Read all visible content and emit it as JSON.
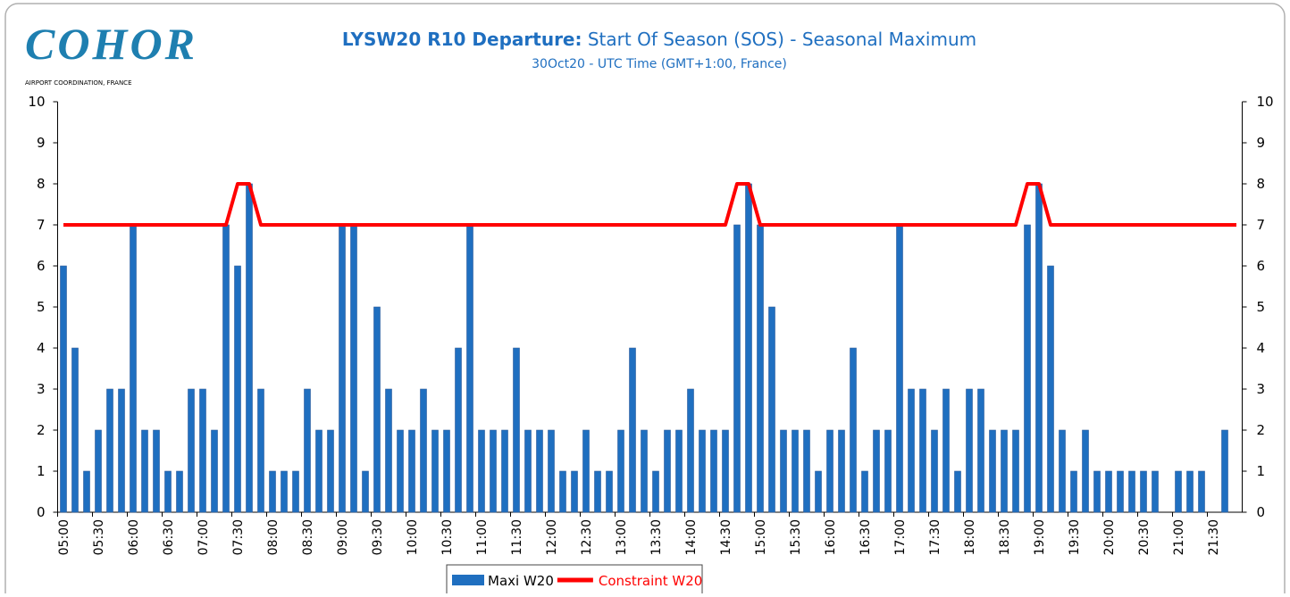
{
  "logo": {
    "name": "COHOR",
    "tagline": "AIRPORT COORDINATION, FRANCE"
  },
  "chart_data": {
    "type": "bar_line",
    "title": {
      "bold": "LYSW20 R10 Departure:",
      "rest": "Start Of Season (SOS) - Seasonal Maximum"
    },
    "subtitle": "30Oct20 - UTC Time (GMT+1:00, France)",
    "categories": [
      "05:00",
      null,
      null,
      "05:30",
      null,
      null,
      "06:00",
      null,
      null,
      "06:30",
      null,
      null,
      "07:00",
      null,
      null,
      "07:30",
      null,
      null,
      "08:00",
      null,
      null,
      "08:30",
      null,
      null,
      "09:00",
      null,
      null,
      "09:30",
      null,
      null,
      "10:00",
      null,
      null,
      "10:30",
      null,
      null,
      "11:00",
      null,
      null,
      "11:30",
      null,
      null,
      "12:00",
      null,
      null,
      "12:30",
      null,
      null,
      "13:00",
      null,
      null,
      "13:30",
      null,
      null,
      "14:00",
      null,
      null,
      "14:30",
      null,
      null,
      "15:00",
      null,
      null,
      "15:30",
      null,
      null,
      "16:00",
      null,
      null,
      "16:30",
      null,
      null,
      "17:00",
      null,
      null,
      "17:30",
      null,
      null,
      "18:00",
      null,
      null,
      "18:30",
      null,
      null,
      "19:00",
      null,
      null,
      "19:30",
      null,
      null,
      "20:00",
      null,
      null,
      "20:30",
      null,
      null,
      "21:00",
      null,
      null,
      "21:30",
      null,
      null
    ],
    "series": [
      {
        "name": "Maxi W20",
        "color": "#1f6fc0",
        "kind": "bar",
        "values": [
          6,
          4,
          1,
          2,
          3,
          3,
          7,
          2,
          2,
          1,
          1,
          3,
          3,
          2,
          7,
          6,
          8,
          3,
          1,
          1,
          1,
          3,
          2,
          2,
          7,
          7,
          1,
          5,
          3,
          2,
          2,
          3,
          2,
          2,
          4,
          7,
          2,
          2,
          2,
          4,
          2,
          2,
          2,
          1,
          1,
          2,
          1,
          1,
          2,
          4,
          2,
          1,
          2,
          2,
          3,
          2,
          2,
          2,
          7,
          8,
          7,
          5,
          2,
          2,
          2,
          1,
          2,
          2,
          4,
          1,
          2,
          2,
          7,
          3,
          3,
          2,
          3,
          1,
          3,
          3,
          2,
          2,
          2,
          7,
          8,
          6,
          2,
          1,
          2,
          1,
          1,
          1,
          1,
          1,
          1,
          0,
          1,
          1,
          1,
          0,
          2,
          0
        ]
      },
      {
        "name": "Constraint W20",
        "color": "#ff0000",
        "kind": "line",
        "values": [
          7,
          7,
          7,
          7,
          7,
          7,
          7,
          7,
          7,
          7,
          7,
          7,
          7,
          7,
          7,
          8,
          8,
          7,
          7,
          7,
          7,
          7,
          7,
          7,
          7,
          7,
          7,
          7,
          7,
          7,
          7,
          7,
          7,
          7,
          7,
          7,
          7,
          7,
          7,
          7,
          7,
          7,
          7,
          7,
          7,
          7,
          7,
          7,
          7,
          7,
          7,
          7,
          7,
          7,
          7,
          7,
          7,
          7,
          8,
          8,
          7,
          7,
          7,
          7,
          7,
          7,
          7,
          7,
          7,
          7,
          7,
          7,
          7,
          7,
          7,
          7,
          7,
          7,
          7,
          7,
          7,
          7,
          7,
          8,
          8,
          7,
          7,
          7,
          7,
          7,
          7,
          7,
          7,
          7,
          7,
          7,
          7,
          7,
          7,
          7,
          7,
          7
        ]
      }
    ],
    "ylim": [
      0,
      10
    ],
    "yticks": [
      0,
      1,
      2,
      3,
      4,
      5,
      6,
      7,
      8,
      9,
      10
    ],
    "y2lim": [
      0,
      10
    ],
    "y2ticks": [
      0,
      1,
      2,
      3,
      4,
      5,
      6,
      7,
      8,
      9,
      10
    ],
    "grid": false,
    "legend": "bottom"
  }
}
